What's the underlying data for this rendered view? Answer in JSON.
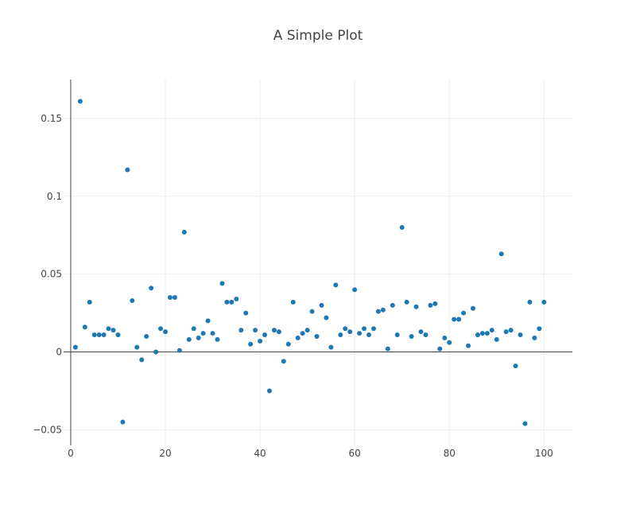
{
  "chart_data": {
    "type": "scatter",
    "title": "A Simple Plot",
    "xlabel": "",
    "ylabel": "",
    "xlim": [
      -1.5,
      106
    ],
    "ylim": [
      -0.06,
      0.175
    ],
    "x_ticks": [
      0,
      20,
      40,
      60,
      80,
      100
    ],
    "x_tick_labels": [
      "0",
      "20",
      "40",
      "60",
      "80",
      "100"
    ],
    "y_ticks": [
      -0.05,
      0,
      0.05,
      0.1,
      0.15
    ],
    "y_tick_labels": [
      "−0.05",
      "0",
      "0.05",
      "0.1",
      "0.15"
    ],
    "grid": true,
    "legend": "none",
    "marker_color": "#1f77b4",
    "series": [
      {
        "x": [
          1,
          2,
          3,
          4,
          5,
          6,
          7,
          8,
          9,
          10,
          11,
          12,
          13,
          14,
          15,
          16,
          17,
          18,
          19,
          20,
          21,
          22,
          23,
          24,
          25,
          26,
          27,
          28,
          29,
          30,
          31,
          32,
          33,
          34,
          35,
          36,
          37,
          38,
          39,
          40,
          41,
          42,
          43,
          44,
          45,
          46,
          47,
          48,
          49,
          50,
          51,
          52,
          53,
          54,
          55,
          56,
          57,
          58,
          59,
          60,
          61,
          62,
          63,
          64,
          65,
          66,
          67,
          68,
          69,
          70,
          71,
          72,
          73,
          74,
          75,
          76,
          77,
          78,
          79,
          80,
          81,
          82,
          83,
          84,
          85,
          86,
          87,
          88,
          89,
          90,
          91,
          92,
          93,
          94,
          95,
          96,
          97,
          98,
          99,
          100
        ],
        "y": [
          0.003,
          0.161,
          0.016,
          0.032,
          0.011,
          0.011,
          0.011,
          0.015,
          0.014,
          0.011,
          -0.045,
          0.117,
          0.033,
          0.003,
          -0.005,
          0.01,
          0.041,
          0.0,
          0.015,
          0.013,
          0.035,
          0.035,
          0.001,
          0.077,
          0.008,
          0.015,
          0.009,
          0.012,
          0.02,
          0.012,
          0.008,
          0.044,
          0.032,
          0.032,
          0.034,
          0.014,
          0.025,
          0.005,
          0.014,
          0.007,
          0.011,
          -0.025,
          0.014,
          0.013,
          -0.006,
          0.005,
          0.032,
          0.009,
          0.012,
          0.014,
          0.026,
          0.01,
          0.03,
          0.022,
          0.003,
          0.043,
          0.011,
          0.015,
          0.013,
          0.04,
          0.012,
          0.015,
          0.011,
          0.015,
          0.026,
          0.027,
          0.002,
          0.03,
          0.011,
          0.08,
          0.032,
          0.01,
          0.029,
          0.013,
          0.011,
          0.03,
          0.031,
          0.002,
          0.009,
          0.006,
          0.021,
          0.021,
          0.025,
          0.004,
          0.028,
          0.011,
          0.012,
          0.012,
          0.014,
          0.008,
          0.063,
          0.013,
          0.014,
          -0.009,
          0.011,
          -0.046,
          0.032,
          0.009,
          0.015,
          0.032
        ]
      }
    ]
  }
}
